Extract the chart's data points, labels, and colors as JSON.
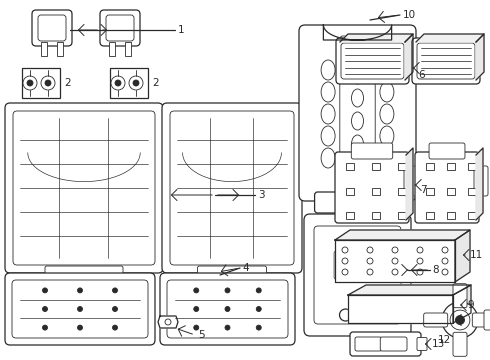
{
  "bg_color": "#ffffff",
  "lc": "#2a2a2a",
  "lw": 0.9,
  "lw2": 0.6,
  "fs": 7.5,
  "fig_w": 4.9,
  "fig_h": 3.6,
  "dpi": 100
}
